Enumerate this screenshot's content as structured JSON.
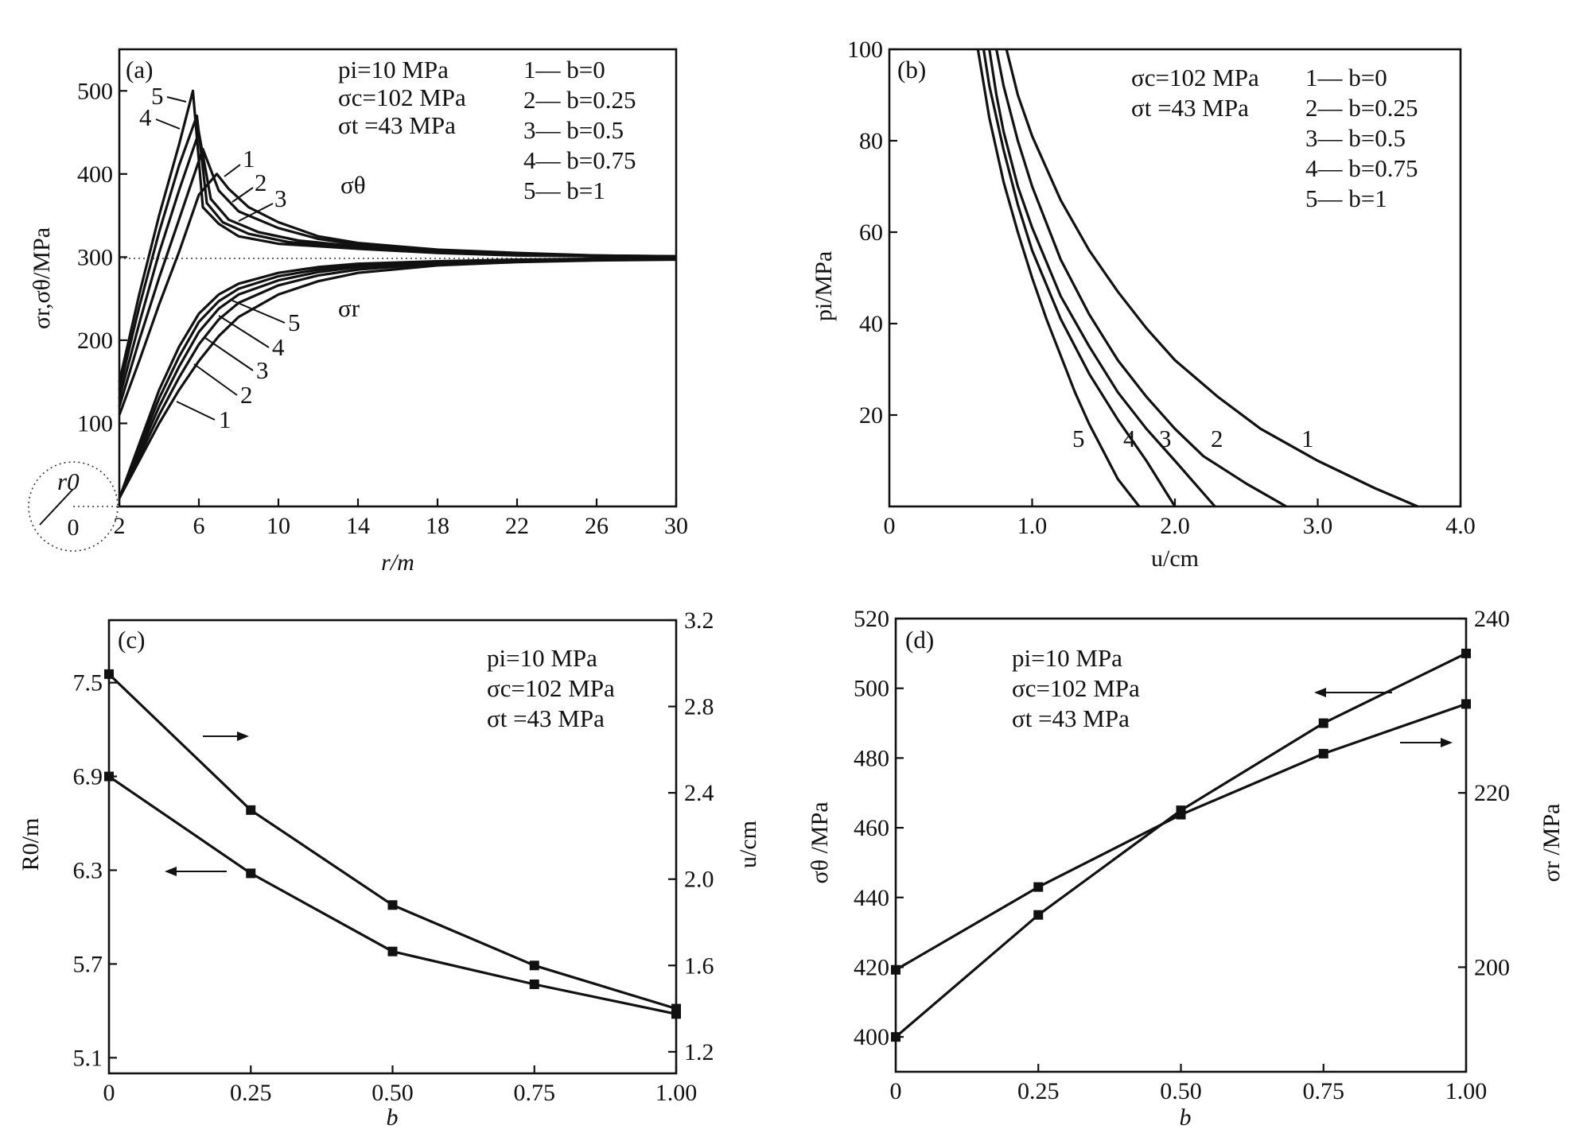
{
  "chart_data": [
    {
      "type": "line",
      "panel_label": "(a)",
      "xlabel": "r/m",
      "ylabel": "σr,σθ/MPa",
      "xlim": [
        2,
        30
      ],
      "ylim": [
        0,
        550
      ],
      "x_ticks": [
        "2",
        "6",
        "10",
        "14",
        "18",
        "22",
        "26",
        "30"
      ],
      "y_ticks": [
        "100",
        "200",
        "300",
        "400",
        "500"
      ],
      "annotations": [
        "pi=10 MPa",
        "σc=102 MPa",
        "σt =43 MPa"
      ],
      "legend": [
        "1— b=0",
        "2— b=0.25",
        "3— b=0.5",
        "4— b=0.75",
        "5— b=1"
      ],
      "curve_labels": [
        "σθ",
        "σr"
      ],
      "origin_labels": [
        "r0",
        "0"
      ],
      "reference_line_y": 300,
      "series": [
        {
          "name": "σθ, b=0",
          "x": [
            2,
            3,
            4,
            5,
            6,
            6.9,
            7.5,
            8.5,
            10,
            12,
            14,
            18,
            22,
            26,
            30
          ],
          "y": [
            110,
            175,
            243,
            306,
            375,
            400,
            382,
            360,
            342,
            325,
            317,
            309,
            305,
            302,
            301
          ]
        },
        {
          "name": "σθ, b=0.25",
          "x": [
            2,
            3,
            4,
            5,
            6.2,
            7,
            8,
            10,
            12,
            14,
            18,
            22,
            26,
            30
          ],
          "y": [
            120,
            200,
            275,
            345,
            430,
            380,
            355,
            335,
            322,
            315,
            308,
            304,
            302,
            301
          ]
        },
        {
          "name": "σθ, b=0.5",
          "x": [
            2,
            3,
            4,
            5,
            6,
            6.6,
            7.5,
            9,
            11,
            14,
            18,
            22,
            26,
            30
          ],
          "y": [
            130,
            220,
            305,
            380,
            450,
            370,
            345,
            330,
            320,
            313,
            307,
            303,
            301,
            300
          ]
        },
        {
          "name": "σθ, b=0.75",
          "x": [
            2,
            3,
            4,
            5,
            5.9,
            6.4,
            7.2,
            8.5,
            10.5,
            14,
            18,
            22,
            26,
            30
          ],
          "y": [
            140,
            240,
            330,
            410,
            470,
            365,
            342,
            328,
            318,
            311,
            306,
            303,
            301,
            300
          ]
        },
        {
          "name": "σθ, b=1",
          "x": [
            2,
            3,
            4,
            5,
            5.7,
            6.2,
            7,
            8,
            10,
            14,
            18,
            22,
            26,
            30
          ],
          "y": [
            150,
            255,
            350,
            435,
            500,
            360,
            340,
            325,
            316,
            310,
            305,
            302,
            301,
            300
          ]
        },
        {
          "name": "σr, b=0",
          "x": [
            2,
            3,
            4,
            5,
            6,
            7,
            8,
            10,
            12,
            14,
            18,
            22,
            26,
            30
          ],
          "y": [
            10,
            55,
            100,
            140,
            175,
            205,
            228,
            255,
            271,
            281,
            290,
            294,
            296,
            297
          ]
        },
        {
          "name": "σr, b=0.25",
          "x": [
            2,
            3,
            4,
            5,
            6,
            7,
            8,
            10,
            12,
            14,
            18,
            22,
            26,
            30
          ],
          "y": [
            10,
            60,
            110,
            155,
            195,
            225,
            245,
            266,
            278,
            285,
            292,
            295,
            297,
            298
          ]
        },
        {
          "name": "σr, b=0.5",
          "x": [
            2,
            3,
            4,
            5,
            6,
            7,
            8,
            10,
            12,
            14,
            18,
            22,
            26,
            30
          ],
          "y": [
            10,
            65,
            120,
            168,
            210,
            238,
            255,
            272,
            282,
            288,
            293,
            296,
            297,
            298
          ]
        },
        {
          "name": "σr, b=0.75",
          "x": [
            2,
            3,
            4,
            5,
            6,
            7,
            8,
            10,
            12,
            14,
            18,
            22,
            26,
            30
          ],
          "y": [
            10,
            70,
            130,
            180,
            222,
            247,
            262,
            277,
            285,
            290,
            294,
            296,
            298,
            299
          ]
        },
        {
          "name": "σr, b=1",
          "x": [
            2,
            3,
            4,
            5,
            6,
            7,
            8,
            10,
            12,
            14,
            18,
            22,
            26,
            30
          ],
          "y": [
            10,
            75,
            140,
            192,
            232,
            255,
            268,
            281,
            288,
            292,
            295,
            297,
            298,
            299
          ]
        }
      ]
    },
    {
      "type": "line",
      "panel_label": "(b)",
      "xlabel": "u/cm",
      "ylabel": "pi/MPa",
      "xlim": [
        0,
        4.0
      ],
      "ylim": [
        0,
        100
      ],
      "x_ticks": [
        "0",
        "1.0",
        "2.0",
        "3.0",
        "4.0"
      ],
      "y_ticks": [
        "20",
        "40",
        "60",
        "80",
        "100"
      ],
      "annotations": [
        "σc=102 MPa",
        "σt =43 MPa"
      ],
      "legend": [
        "1— b=0",
        "2— b=0.25",
        "3— b=0.5",
        "4— b=0.75",
        "5— b=1"
      ],
      "curve_labels": [
        "1",
        "2",
        "3",
        "4",
        "5"
      ],
      "series": [
        {
          "name": "1",
          "x": [
            0.82,
            0.9,
            1.0,
            1.2,
            1.4,
            1.6,
            1.8,
            2.0,
            2.3,
            2.6,
            3.0,
            3.4,
            3.7
          ],
          "y": [
            100,
            90,
            81,
            67,
            56,
            47,
            39,
            32,
            24,
            17,
            10,
            4,
            0
          ]
        },
        {
          "name": "2",
          "x": [
            0.75,
            0.8,
            0.9,
            1.0,
            1.2,
            1.4,
            1.6,
            1.8,
            2.0,
            2.2,
            2.5,
            2.78
          ],
          "y": [
            100,
            92,
            80,
            70,
            54,
            42,
            32,
            24,
            17,
            11,
            5,
            0
          ]
        },
        {
          "name": "3",
          "x": [
            0.7,
            0.75,
            0.8,
            0.9,
            1.0,
            1.2,
            1.4,
            1.6,
            1.8,
            2.0,
            2.28
          ],
          "y": [
            100,
            90,
            82,
            70,
            61,
            46,
            35,
            25,
            17,
            10,
            0
          ]
        },
        {
          "name": "4",
          "x": [
            0.66,
            0.7,
            0.8,
            0.9,
            1.0,
            1.2,
            1.4,
            1.6,
            1.8,
            2.0
          ],
          "y": [
            100,
            92,
            78,
            66,
            56,
            41,
            29,
            19,
            10,
            0
          ]
        },
        {
          "name": "5",
          "x": [
            0.62,
            0.7,
            0.8,
            0.9,
            1.0,
            1.1,
            1.2,
            1.3,
            1.4,
            1.5,
            1.6,
            1.75
          ],
          "y": [
            100,
            85,
            71,
            60,
            50,
            41,
            33,
            25,
            18,
            12,
            6,
            0
          ]
        }
      ]
    },
    {
      "type": "line",
      "panel_label": "(c)",
      "xlabel": "b",
      "ylabel": "R0/m",
      "ylabel_right": "u/cm",
      "xlim": [
        0,
        1.0
      ],
      "ylim": [
        5.0,
        7.9
      ],
      "ylim_right": [
        1.1,
        3.2
      ],
      "x_ticks": [
        "0",
        "0.25",
        "0.50",
        "0.75",
        "1.00"
      ],
      "y_ticks": [
        "5.1",
        "5.7",
        "6.3",
        "6.9",
        "7.5"
      ],
      "y_ticks_right": [
        "1.2",
        "1.6",
        "2.0",
        "2.4",
        "2.8",
        "3.2"
      ],
      "annotations": [
        "pi=10 MPa",
        "σc=102 MPa",
        "σt =43 MPa"
      ],
      "series": [
        {
          "name": "R0",
          "axis": "left",
          "x": [
            0,
            0.25,
            0.5,
            0.75,
            1.0
          ],
          "y": [
            6.9,
            6.28,
            5.78,
            5.57,
            5.38
          ]
        },
        {
          "name": "u",
          "axis": "right",
          "x": [
            0,
            0.25,
            0.5,
            0.75,
            1.0
          ],
          "y": [
            2.95,
            2.32,
            1.88,
            1.6,
            1.4
          ]
        }
      ]
    },
    {
      "type": "line",
      "panel_label": "(d)",
      "xlabel": "b",
      "ylabel": "σθ /MPa",
      "ylabel_right": "σr /MPa",
      "xlim": [
        0,
        1.0
      ],
      "ylim": [
        390,
        520
      ],
      "ylim_right": [
        188,
        240
      ],
      "x_ticks": [
        "0",
        "0.25",
        "0.50",
        "0.75",
        "1.00"
      ],
      "y_ticks": [
        "400",
        "420",
        "440",
        "460",
        "480",
        "500",
        "520"
      ],
      "y_ticks_right": [
        "200",
        "220",
        "240"
      ],
      "annotations": [
        "pi=10 MPa",
        "σc=102 MPa",
        "σt =43 MPa"
      ],
      "series": [
        {
          "name": "σθ",
          "axis": "left",
          "x": [
            0,
            0.25,
            0.5,
            0.75,
            1.0
          ],
          "y": [
            400,
            435,
            465,
            490,
            510
          ]
        },
        {
          "name": "σr",
          "axis": "right",
          "x": [
            0,
            0.25,
            0.5,
            0.75,
            1.0
          ],
          "y": [
            199.7,
            209.2,
            217.5,
            224.5,
            230.2
          ]
        }
      ]
    }
  ]
}
